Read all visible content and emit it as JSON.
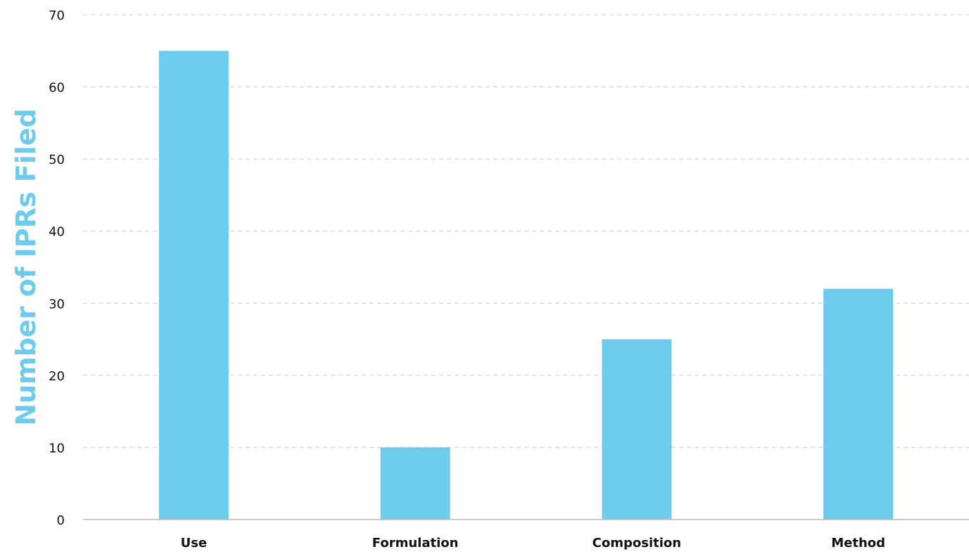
{
  "chart_data": {
    "type": "bar",
    "title": "",
    "xlabel": "",
    "ylabel": "Number of IPRs Filed",
    "categories": [
      "Use",
      "Formulation",
      "Composition",
      "Method"
    ],
    "values": [
      65,
      10,
      25,
      32
    ],
    "ylim": [
      0,
      70
    ],
    "yticks": [
      0,
      10,
      20,
      30,
      40,
      50,
      60,
      70
    ],
    "grid": true,
    "legend": "none",
    "colors": {
      "bar": "#6ECBEB",
      "ylabel": "#6ECBEB",
      "grid": "#CCCCCC",
      "axis": "#BBBBBB",
      "text": "#111111"
    }
  }
}
